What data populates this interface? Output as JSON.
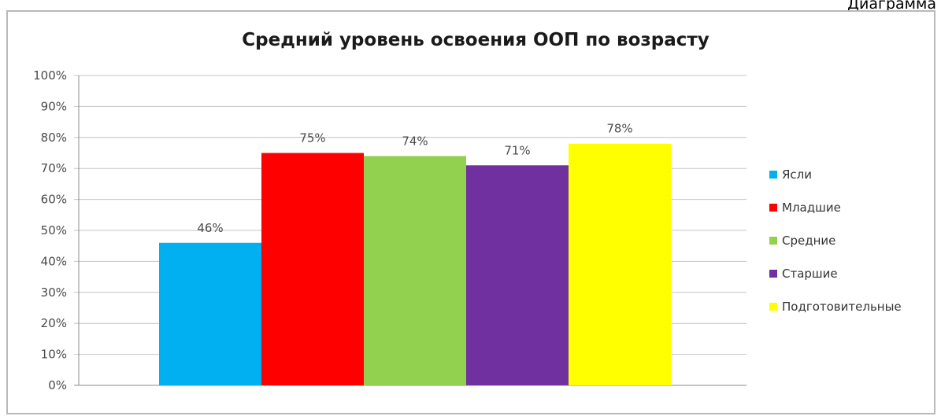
{
  "caption": "Диаграмма",
  "chart_data": {
    "type": "bar",
    "title": "Средний уровень освоения ООП по возрасту",
    "xlabel": "",
    "ylabel": "",
    "ylim": [
      0,
      100
    ],
    "yticks": [
      "0%",
      "10%",
      "20%",
      "30%",
      "40%",
      "50%",
      "60%",
      "70%",
      "80%",
      "90%",
      "100%"
    ],
    "grid": true,
    "legend_position": "right",
    "series": [
      {
        "name": "Ясли",
        "value": 46,
        "label": "46%",
        "color": "#00b0f0"
      },
      {
        "name": "Младшие",
        "value": 75,
        "label": "75%",
        "color": "#ff0000"
      },
      {
        "name": "Средние",
        "value": 74,
        "label": "74%",
        "color": "#92d050"
      },
      {
        "name": "Старшие",
        "value": 71,
        "label": "71%",
        "color": "#7030a0"
      },
      {
        "name": "Подготовительные",
        "value": 78,
        "label": "78%",
        "color": "#ffff00"
      }
    ]
  }
}
